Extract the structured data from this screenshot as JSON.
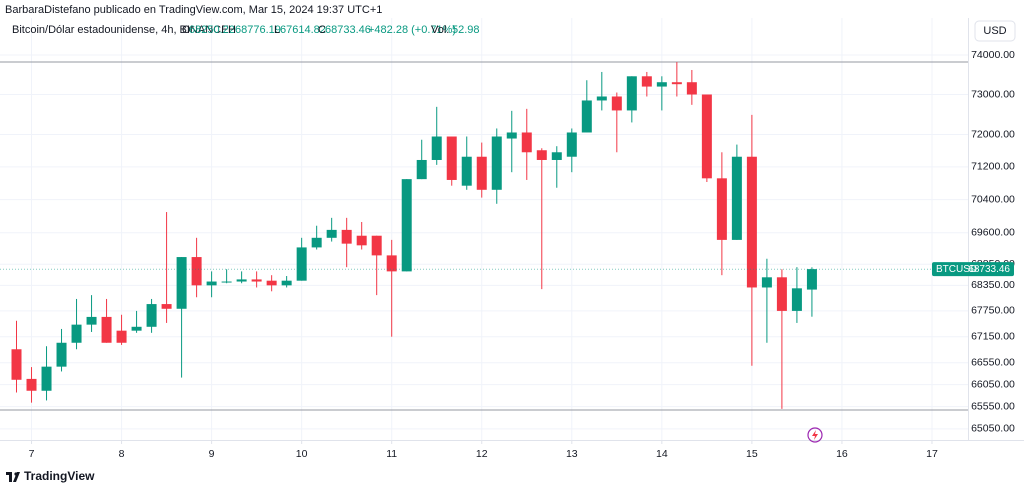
{
  "header": {
    "publisher": "BarbaraDistefano publicado en TradingView.com, Mar 15, 2024 19:37 UTC+1",
    "currency_button": "USD",
    "brand": "TradingView"
  },
  "legend": {
    "symbol": "Bitcoin/Dólar estadounidense, 4h, BINANCE",
    "open_label": "O",
    "high_label": "H",
    "low_label": "L",
    "close_label": "C",
    "change": "+482.28 (+0.71%)",
    "volume_label": "Vol.",
    "volume": 52.98
  },
  "price_tag": {
    "symbol": "BTCUSD"
  },
  "chart_data": {
    "type": "candlestick",
    "log_scale": true,
    "grid": true,
    "up_color": "#089981",
    "down_color": "#f23645",
    "x": [
      6.8333,
      7,
      7.1667,
      7.3333,
      7.5,
      7.6667,
      7.8333,
      8,
      8.1667,
      8.3333,
      8.5,
      8.6667,
      8.8333,
      9,
      9.1667,
      9.3333,
      9.5,
      9.6667,
      9.8333,
      10,
      10.1667,
      10.3333,
      10.5,
      10.6667,
      10.8333,
      11,
      11.1667,
      11.3333,
      11.5,
      11.6667,
      11.8333,
      12,
      12.1667,
      12.3333,
      12.5,
      12.6667,
      12.8333,
      13,
      13.1667,
      13.3333,
      13.5,
      13.6667,
      13.8333,
      14,
      14.1667,
      14.3333,
      14.5,
      14.6667,
      14.8333,
      15,
      15.1667,
      15.3333,
      15.5,
      15.6667
    ],
    "open": [
      66860,
      66180,
      65910,
      66460,
      67010,
      67430,
      67610,
      67290,
      67290,
      67380,
      67910,
      67800,
      69020,
      68350,
      68420,
      68440,
      68490,
      68460,
      68350,
      68460,
      69250,
      69480,
      69670,
      69530,
      69530,
      69060,
      68680,
      70900,
      71370,
      71950,
      70740,
      71450,
      70640,
      71900,
      72050,
      71610,
      71370,
      71450,
      72050,
      72850,
      72950,
      72600,
      73460,
      73200,
      73310,
      73310,
      73000,
      70920,
      69430,
      71450,
      68300,
      68540,
      67750,
      68250.22
    ],
    "high": [
      67520,
      66450,
      66930,
      67330,
      68030,
      68120,
      68030,
      67660,
      67750,
      68030,
      70100,
      69020,
      69480,
      68680,
      68730,
      68680,
      68680,
      68590,
      68570,
      69480,
      69770,
      69960,
      69960,
      69860,
      69530,
      69430,
      70900,
      71870,
      72690,
      71950,
      71950,
      71800,
      72150,
      72590,
      72640,
      71660,
      71710,
      72150,
      73360,
      73570,
      73050,
      73460,
      73570,
      73460,
      73820,
      73620,
      73000,
      71560,
      71750,
      72490,
      68980,
      68730,
      68780,
      68776.19
    ],
    "low": [
      65870,
      65640,
      65690,
      66350,
      66860,
      67260,
      67010,
      66960,
      67240,
      67240,
      67470,
      66210,
      68070,
      68070,
      68400,
      68400,
      68300,
      68210,
      68300,
      68460,
      69200,
      69390,
      68780,
      69200,
      68120,
      67150,
      68680,
      70900,
      71250,
      70740,
      70640,
      70450,
      70300,
      71070,
      70880,
      68260,
      70690,
      71070,
      72050,
      72600,
      71560,
      72300,
      72950,
      72600,
      72950,
      72740,
      70830,
      68590,
      69430,
      66480,
      67010,
      65500,
      67470,
      67614.82
    ],
    "close": [
      66160,
      65910,
      66460,
      67010,
      67430,
      67610,
      67010,
      67010,
      67380,
      67910,
      67800,
      69020,
      68350,
      68440,
      68440,
      68490,
      68440,
      68350,
      68460,
      69250,
      69480,
      69670,
      69340,
      69300,
      69060,
      68680,
      70900,
      71370,
      71950,
      70880,
      71450,
      70640,
      71950,
      72050,
      71560,
      71370,
      71560,
      72050,
      72850,
      72950,
      72600,
      73460,
      73200,
      73310,
      73260,
      73000,
      70920,
      69430,
      71450,
      68300,
      68540,
      67750,
      68280,
      68733.46
    ],
    "xlim": [
      6.65,
      17.4
    ],
    "xticks": [
      7,
      8,
      9,
      10,
      11,
      12,
      13,
      14,
      15,
      16,
      17
    ],
    "ylim": [
      64800,
      74900
    ],
    "yticks": [
      {
        "value": 74000,
        "label": "74000.00"
      },
      {
        "value": 73000,
        "label": "73000.00"
      },
      {
        "value": 72000,
        "label": "72000.00"
      },
      {
        "value": 71200,
        "label": "71200.00"
      },
      {
        "value": 70400,
        "label": "70400.00"
      },
      {
        "value": 69600,
        "label": "69600.00"
      },
      {
        "value": 68850,
        "label": "68850.00"
      },
      {
        "value": 68350,
        "label": "68350.00"
      },
      {
        "value": 67750,
        "label": "67750.00"
      },
      {
        "value": 67150,
        "label": "67150.00"
      },
      {
        "value": 66550,
        "label": "66550.00"
      },
      {
        "value": 66050,
        "label": "66050.00"
      },
      {
        "value": 65550,
        "label": "65550.00"
      },
      {
        "value": 65050,
        "label": "65050.00"
      }
    ]
  }
}
